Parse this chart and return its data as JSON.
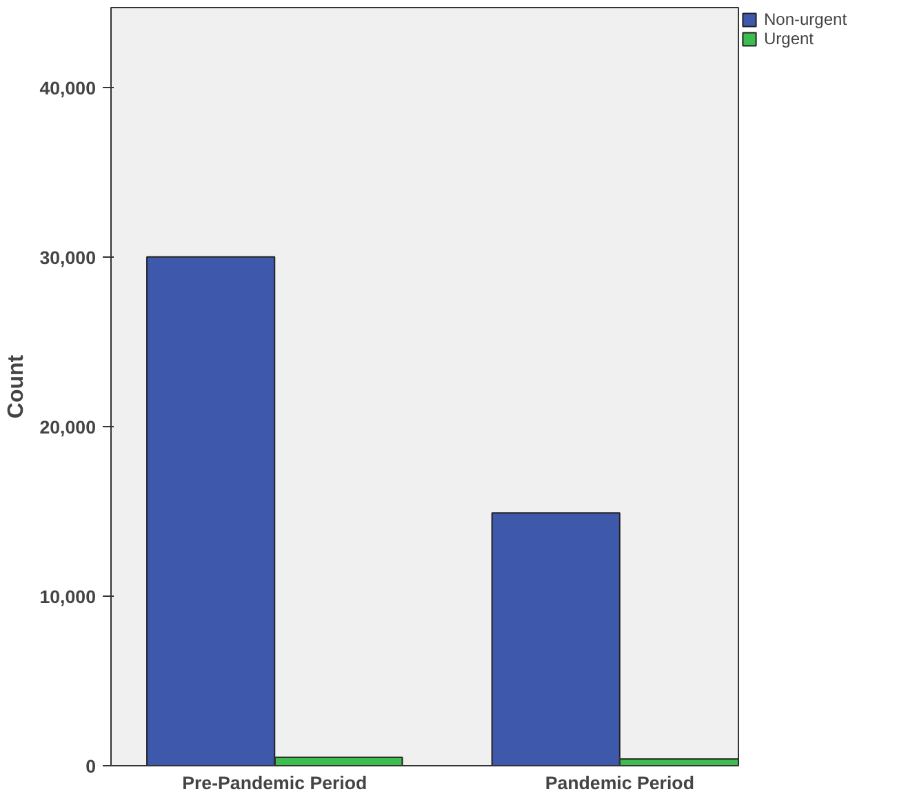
{
  "chart_data": {
    "type": "bar",
    "ylabel": "Count",
    "categories": [
      "Pre-Pandemic Period",
      "Pandemic Period"
    ],
    "series": [
      {
        "name": "Non-urgent",
        "color": "#3e58ac",
        "values": [
          30000,
          14900
        ]
      },
      {
        "name": "Urgent",
        "color": "#3dbd4e",
        "values": [
          500,
          400
        ]
      }
    ],
    "ylim": [
      0,
      44700
    ],
    "yticks": [
      0,
      {
        "value": 10000,
        "label": "10,000"
      },
      {
        "value": 20000,
        "label": "20,000"
      },
      {
        "value": 30000,
        "label": "30,000"
      },
      {
        "value": 40000,
        "label": "40,000"
      }
    ],
    "grid": false,
    "legend": "top right"
  }
}
